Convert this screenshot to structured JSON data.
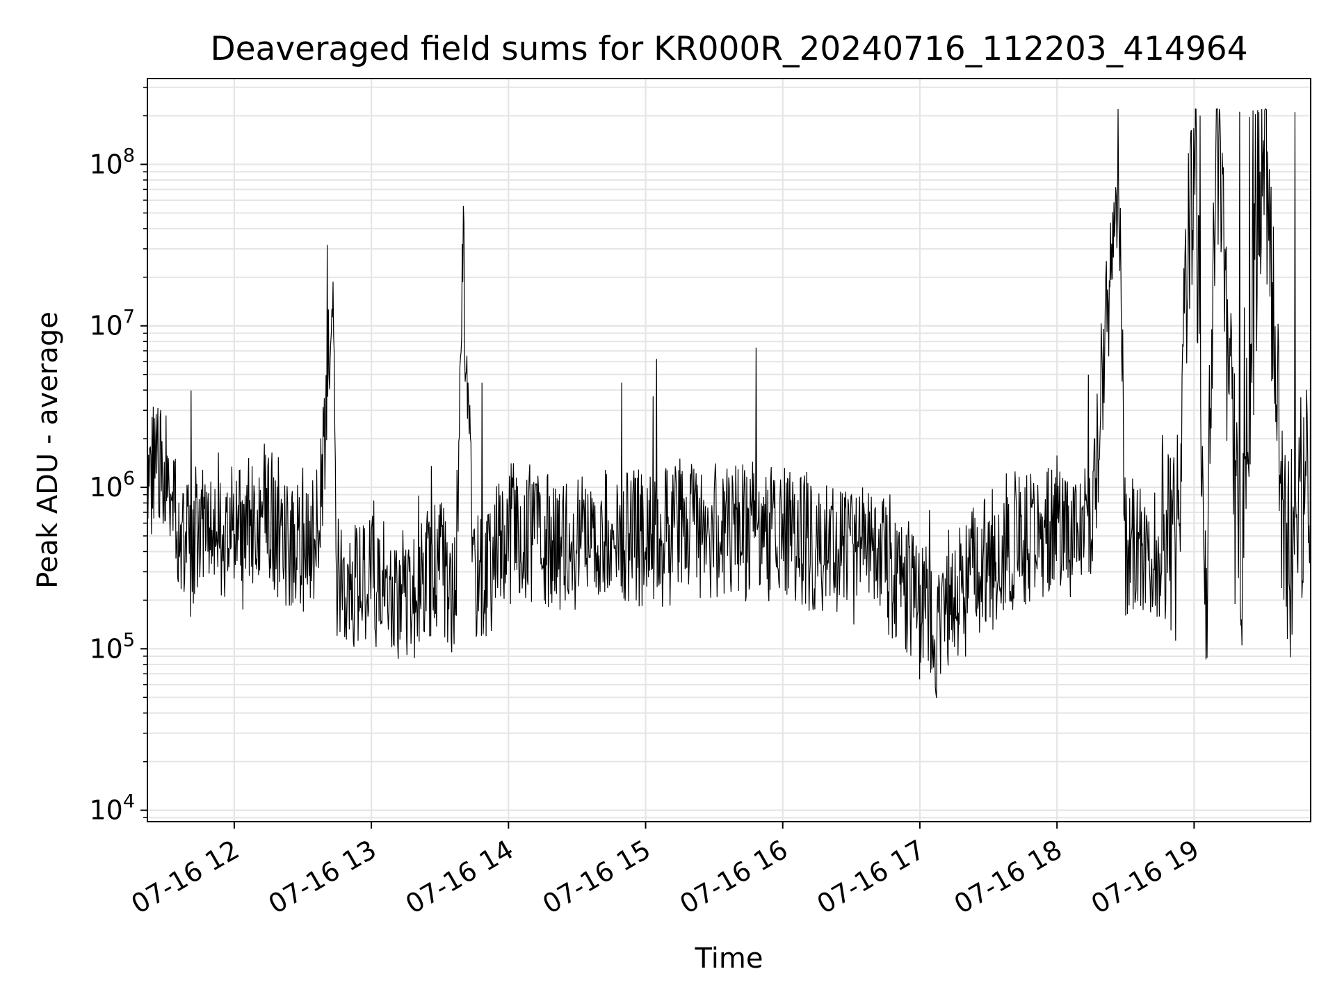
{
  "chart_data": {
    "type": "line",
    "title": "Deaveraged field sums for KR000R_20240716_112203_414964",
    "xlabel": "Time",
    "ylabel": "Peak ADU - average",
    "xscale": "time",
    "yscale": "log",
    "xlim": [
      "2024-07-16 11:22",
      "2024-07-16 19:51"
    ],
    "ylim": [
      8500,
      340000000
    ],
    "grid": true,
    "line_color": "#000000",
    "grid_color": "#e5e5e5",
    "x_ticks": [
      "07-16 12",
      "07-16 13",
      "07-16 14",
      "07-16 15",
      "07-16 16",
      "07-16 17",
      "07-16 18",
      "07-16 19"
    ],
    "y_ticks": [
      {
        "base": "10",
        "exp": "4",
        "value": 10000
      },
      {
        "base": "10",
        "exp": "5",
        "value": 100000
      },
      {
        "base": "10",
        "exp": "6",
        "value": 1000000
      },
      {
        "base": "10",
        "exp": "7",
        "value": 10000000
      },
      {
        "base": "10",
        "exp": "8",
        "value": 100000000
      }
    ],
    "series": [
      {
        "x": [
          "2024-07-16 11:22",
          "2024-07-16 11:30",
          "2024-07-16 11:37",
          "2024-07-16 11:45",
          "2024-07-16 11:52",
          "2024-07-16 12:00",
          "2024-07-16 12:07",
          "2024-07-16 12:15",
          "2024-07-16 12:22",
          "2024-07-16 12:30",
          "2024-07-16 12:37",
          "2024-07-16 12:43",
          "2024-07-16 12:45",
          "2024-07-16 12:52",
          "2024-07-16 13:00",
          "2024-07-16 13:07",
          "2024-07-16 13:15",
          "2024-07-16 13:22",
          "2024-07-16 13:30",
          "2024-07-16 13:37",
          "2024-07-16 13:40",
          "2024-07-16 13:45",
          "2024-07-16 13:52",
          "2024-07-16 14:00",
          "2024-07-16 14:15",
          "2024-07-16 14:30",
          "2024-07-16 14:45",
          "2024-07-16 15:00",
          "2024-07-16 15:15",
          "2024-07-16 15:30",
          "2024-07-16 15:45",
          "2024-07-16 16:00",
          "2024-07-16 16:15",
          "2024-07-16 16:30",
          "2024-07-16 16:45",
          "2024-07-16 17:00",
          "2024-07-16 17:07",
          "2024-07-16 17:15",
          "2024-07-16 17:30",
          "2024-07-16 17:45",
          "2024-07-16 18:00",
          "2024-07-16 18:15",
          "2024-07-16 18:27",
          "2024-07-16 18:30",
          "2024-07-16 18:45",
          "2024-07-16 18:52",
          "2024-07-16 19:00",
          "2024-07-16 19:05",
          "2024-07-16 19:10",
          "2024-07-16 19:20",
          "2024-07-16 19:30",
          "2024-07-16 19:40",
          "2024-07-16 19:51"
        ],
        "y": [
          1400000,
          1500000,
          450000,
          600000,
          700000,
          550000,
          600000,
          800000,
          500000,
          550000,
          700000,
          12500000,
          300000,
          280000,
          350000,
          280000,
          250000,
          300000,
          350000,
          280000,
          33000000,
          300000,
          400000,
          600000,
          500000,
          550000,
          600000,
          550000,
          650000,
          600000,
          600000,
          600000,
          500000,
          450000,
          400000,
          200000,
          150000,
          250000,
          400000,
          550000,
          650000,
          600000,
          130000000,
          500000,
          450000,
          400000,
          220000000,
          150000,
          220000000,
          250000,
          210000000,
          400000,
          1500000
        ]
      }
    ]
  }
}
